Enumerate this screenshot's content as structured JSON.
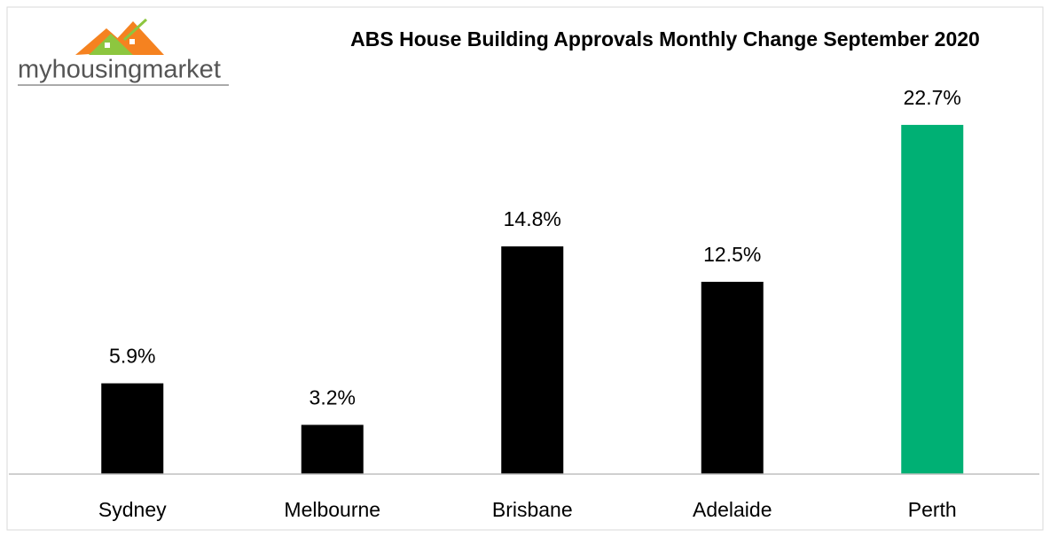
{
  "logo": "myhousingmarket",
  "chart_data": {
    "type": "bar",
    "title": "ABS House Building Approvals Monthly Change September 2020",
    "categories": [
      "Sydney",
      "Melbourne",
      "Brisbane",
      "Adelaide",
      "Perth"
    ],
    "values": [
      5.9,
      3.2,
      14.8,
      12.5,
      22.7
    ],
    "value_labels": [
      "5.9%",
      "3.2%",
      "14.8%",
      "12.5%",
      "22.7%"
    ],
    "colors": [
      "#000000",
      "#000000",
      "#000000",
      "#000000",
      "#00b074"
    ],
    "ylim": [
      0,
      25
    ],
    "grid": false
  }
}
